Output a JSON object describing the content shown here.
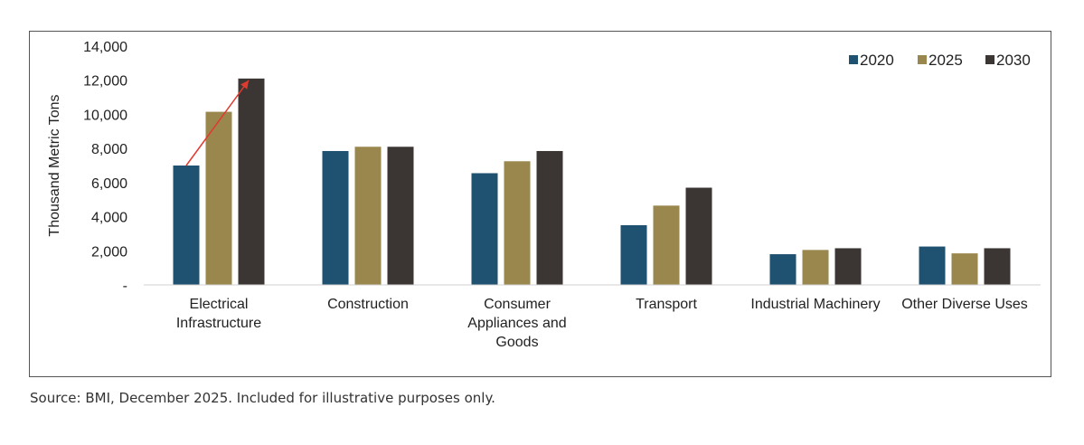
{
  "chart_data": {
    "type": "bar",
    "title": "",
    "xlabel": "",
    "ylabel": "Thousand Metric Tons",
    "ylim": [
      0,
      14000
    ],
    "yticks": [
      0,
      2000,
      4000,
      6000,
      8000,
      10000,
      12000,
      14000
    ],
    "ytick_labels": [
      "-",
      "2,000",
      "4,000",
      "6,000",
      "8,000",
      "10,000",
      "12,000",
      "14,000"
    ],
    "grid": false,
    "legend_position": "top-right",
    "categories": [
      [
        "Electrical",
        "Infrastructure"
      ],
      [
        "Construction"
      ],
      [
        "Consumer",
        "Appliances and",
        "Goods"
      ],
      [
        "Transport"
      ],
      [
        "Industrial Machinery"
      ],
      [
        "Other Diverse Uses"
      ]
    ],
    "series": [
      {
        "name": "2020",
        "color": "#1f5170",
        "values": [
          7000,
          7850,
          6550,
          3500,
          1800,
          2250
        ]
      },
      {
        "name": "2025",
        "color": "#9a874e",
        "values": [
          10150,
          8100,
          7250,
          4650,
          2050,
          1850
        ]
      },
      {
        "name": "2030",
        "color": "#3b3633",
        "values": [
          12100,
          8100,
          7850,
          5700,
          2150,
          2150
        ]
      }
    ],
    "annotations": [
      {
        "type": "arrow",
        "color": "#e03a2f",
        "from": {
          "category": 0,
          "series": 0
        },
        "to": {
          "category": 0,
          "series": 2
        }
      }
    ]
  },
  "source_note": "Source: BMI, December 2025. Included for illustrative purposes only."
}
